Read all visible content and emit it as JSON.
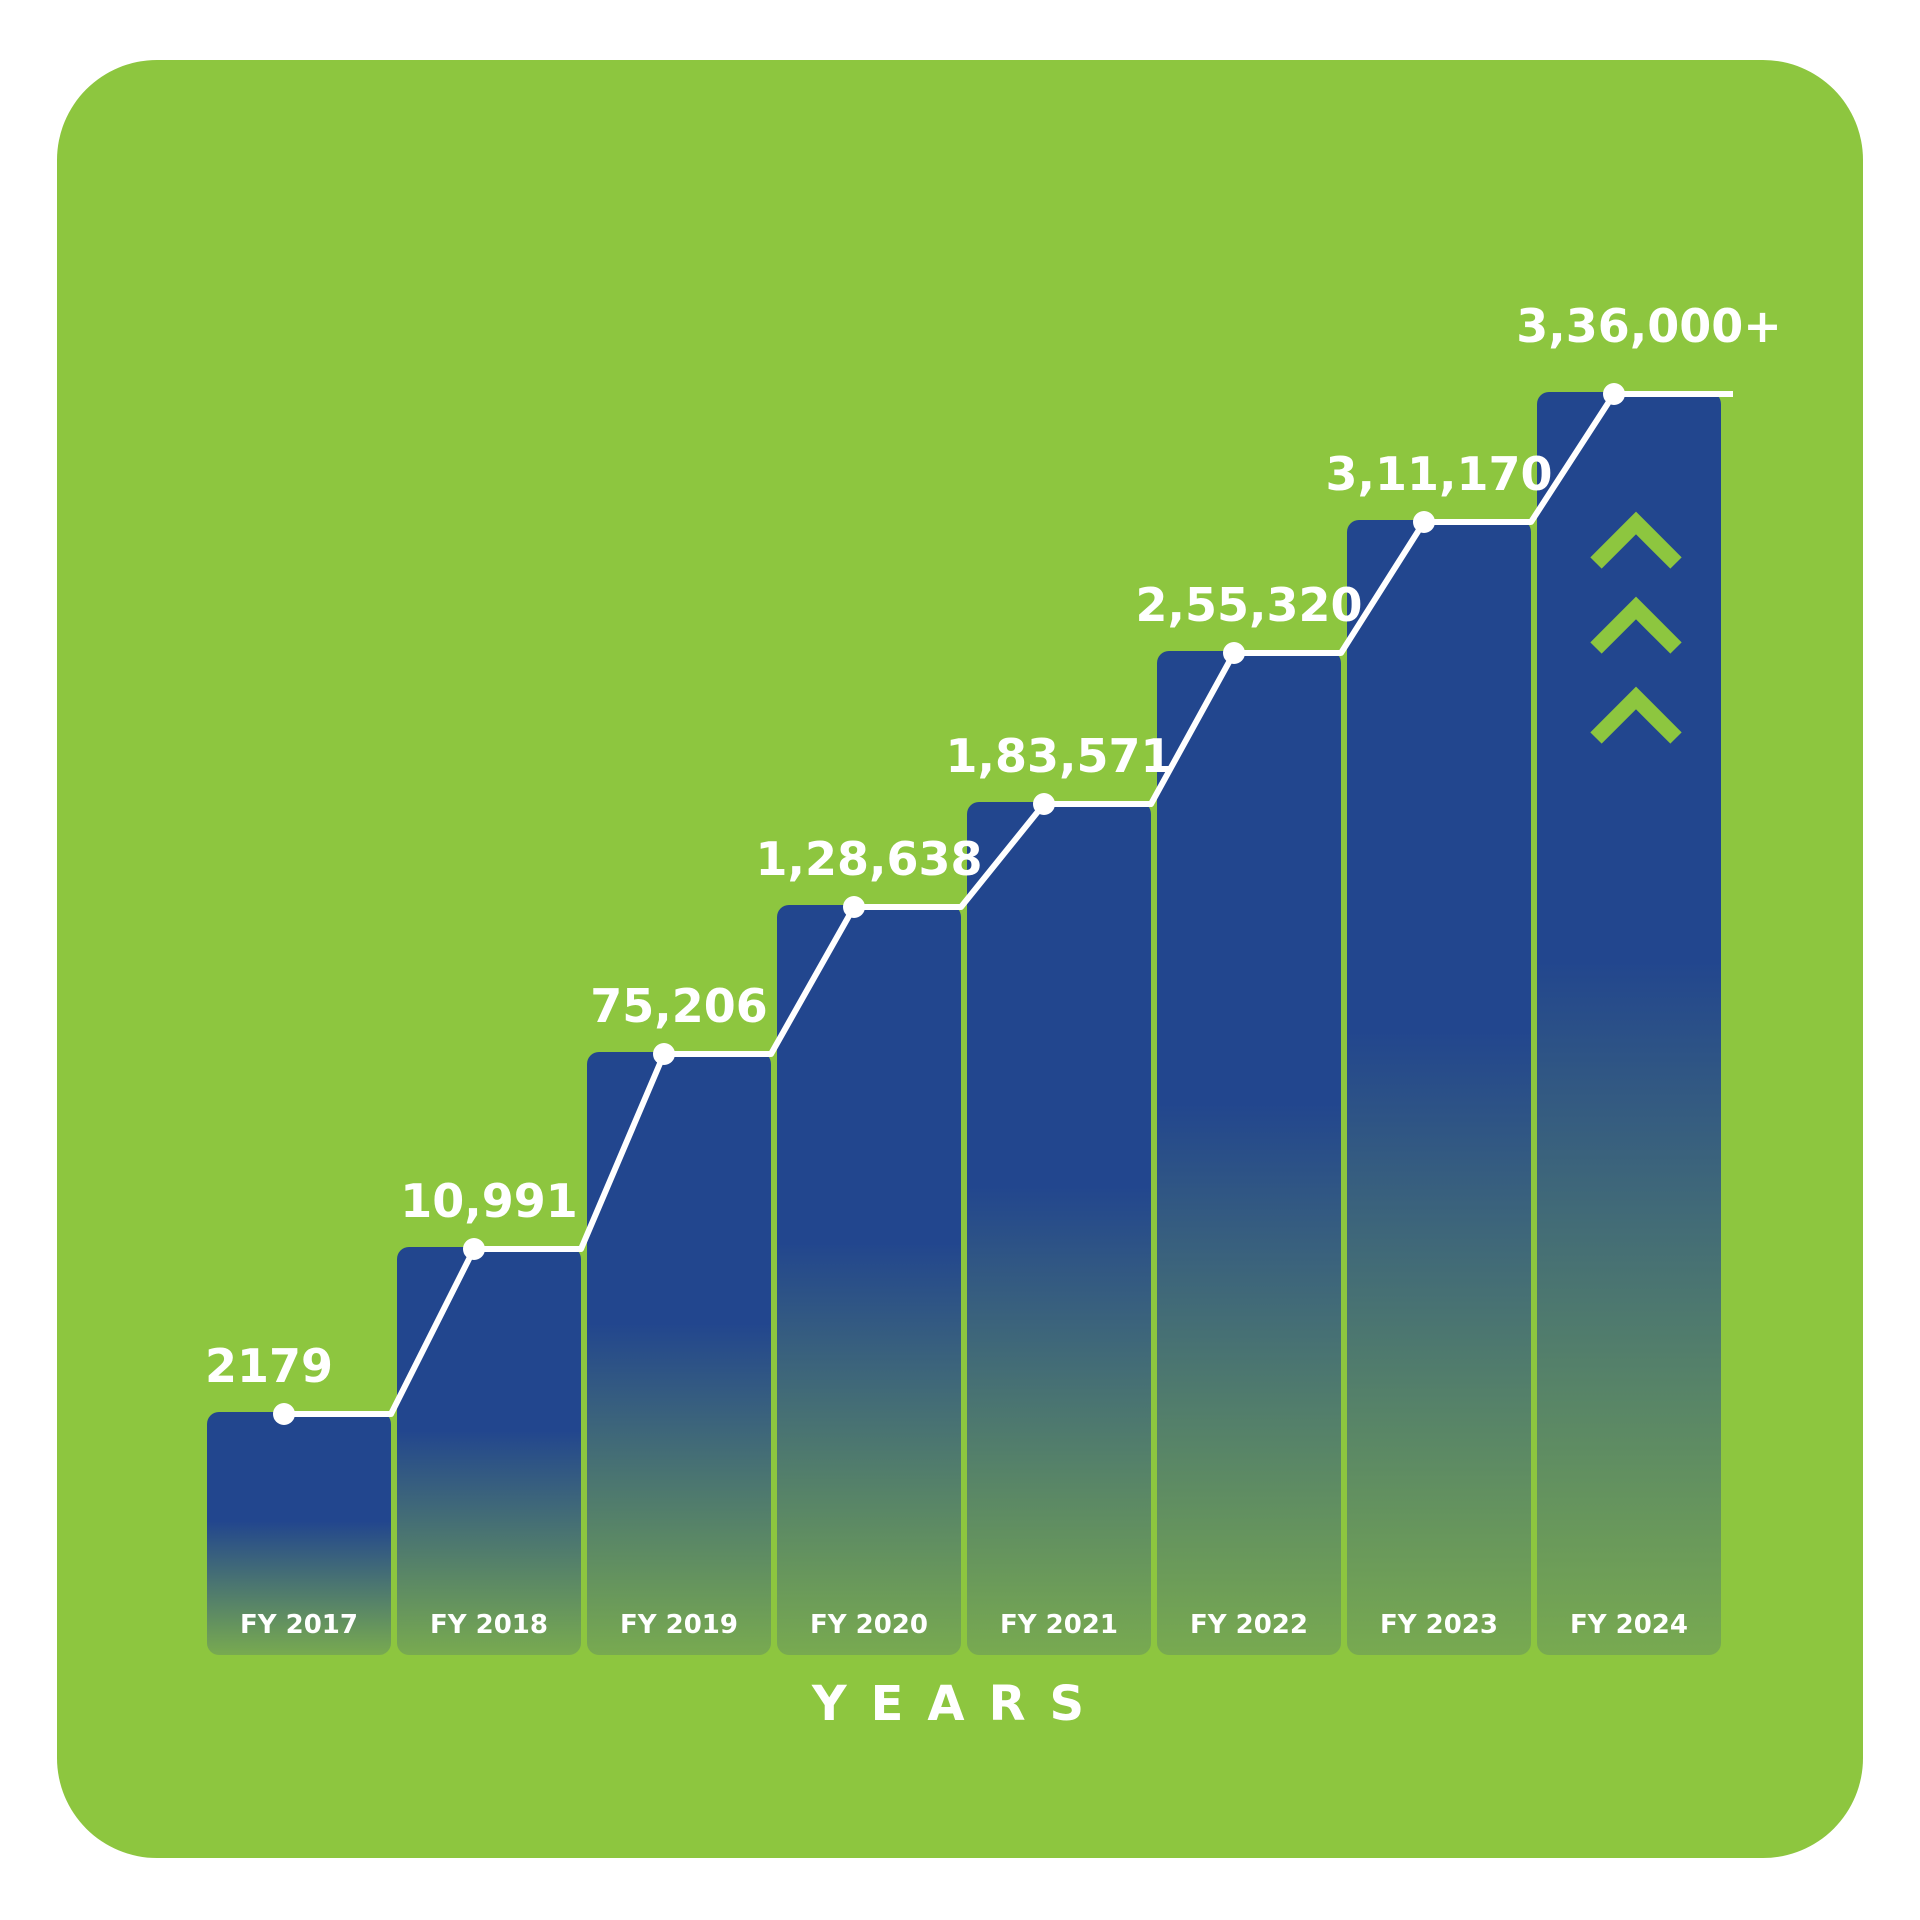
{
  "chart_data": {
    "type": "bar",
    "xlabel": "YEARS",
    "ylabel": "",
    "categories": [
      "FY 2017",
      "FY 2018",
      "FY 2019",
      "FY 2020",
      "FY 2021",
      "FY 2022",
      "FY 2023",
      "FY 2024"
    ],
    "values": [
      2179,
      10991,
      75206,
      128638,
      183571,
      255320,
      311170,
      336000
    ],
    "data_labels": [
      "2179",
      "10,991",
      "75,206",
      "1,28,638",
      "1,83,571",
      "2,55,320",
      "3,11,170",
      "3,36,000+"
    ],
    "overlay": "step-line connecting bar tops with markers",
    "grid": false,
    "legend": "none"
  },
  "colors": {
    "card_background": "#8DC63F",
    "bar_top": "#22468E",
    "bar_bottom": "#78AA50",
    "line": "#ffffff",
    "chevron": "#8DC63F"
  },
  "decorations": {
    "chevrons_icon": "triple-chevron-up-icon"
  }
}
